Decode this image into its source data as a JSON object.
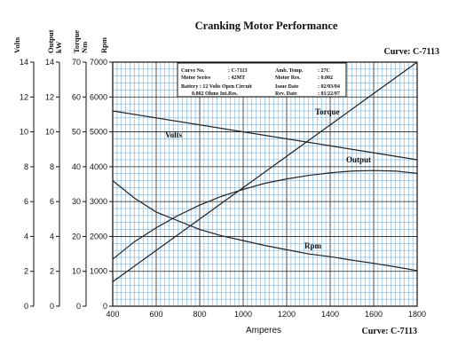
{
  "chart_data": {
    "type": "line",
    "title": "Cranking Motor Performance",
    "curve_label_top": "Curve: C-7113",
    "curve_label_bottom": "Curve: C-7113",
    "xlabel": "Amperes",
    "xlim": [
      400,
      1800
    ],
    "x_ticks": [
      "400",
      "600",
      "800",
      "1000",
      "1200",
      "1400",
      "1600",
      "1800"
    ],
    "grid": true,
    "grid_color": "#5aa0d8",
    "axes": [
      {
        "id": "volts",
        "label": "Volts",
        "range": [
          0,
          14
        ],
        "ticks": [
          "0",
          "2",
          "4",
          "6",
          "8",
          "10",
          "12",
          "14"
        ]
      },
      {
        "id": "output",
        "label": "Output kW",
        "label_lines": [
          "Output",
          "kW"
        ],
        "range": [
          0,
          14
        ],
        "ticks": [
          "0",
          "2",
          "4",
          "6",
          "8",
          "10",
          "12",
          "14"
        ]
      },
      {
        "id": "torque",
        "label": "Torque Nm",
        "label_lines": [
          "Torque",
          "Nm"
        ],
        "range": [
          0,
          70
        ],
        "ticks": [
          "0",
          "10",
          "20",
          "30",
          "40",
          "50",
          "60",
          "70"
        ]
      },
      {
        "id": "rpm",
        "label": "Rpm",
        "range": [
          0,
          7000
        ],
        "ticks": [
          "0",
          "1000",
          "2000",
          "3000",
          "4000",
          "5000",
          "6000",
          "7000"
        ]
      }
    ],
    "series": [
      {
        "name": "Volts",
        "axis": "volts",
        "x": [
          400,
          1800
        ],
        "y": [
          11.2,
          8.4
        ]
      },
      {
        "name": "Torque",
        "axis": "torque",
        "x": [
          400,
          1800
        ],
        "y": [
          7,
          70
        ]
      },
      {
        "name": "Output",
        "axis": "output",
        "x": [
          400,
          500,
          600,
          700,
          800,
          900,
          1000,
          1100,
          1200,
          1300,
          1400,
          1500,
          1600,
          1700,
          1800
        ],
        "y": [
          2.7,
          3.7,
          4.5,
          5.2,
          5.8,
          6.3,
          6.7,
          7.05,
          7.3,
          7.5,
          7.65,
          7.75,
          7.78,
          7.75,
          7.62
        ]
      },
      {
        "name": "Rpm",
        "axis": "rpm",
        "x": [
          400,
          500,
          600,
          700,
          800,
          900,
          1000,
          1100,
          1200,
          1300,
          1400,
          1500,
          1600,
          1700,
          1800
        ],
        "y": [
          3600,
          3100,
          2700,
          2450,
          2200,
          2020,
          1880,
          1740,
          1620,
          1500,
          1420,
          1320,
          1230,
          1130,
          1020
        ]
      }
    ],
    "info_box": {
      "rows": [
        [
          "Curve No.",
          ": C-7113",
          "Amb. Temp.",
          ": 27C"
        ],
        [
          "Motor Series",
          ": 42MT",
          "Motor Res.",
          ": 0.002"
        ],
        [
          "Battery : 12 Volts Open Circuit",
          "",
          "Issue Date",
          ": 02/03/04"
        ],
        [
          "0.002 Ohms Int.Res.",
          "",
          "Rev. Date",
          ": 01/22/07"
        ]
      ]
    }
  }
}
